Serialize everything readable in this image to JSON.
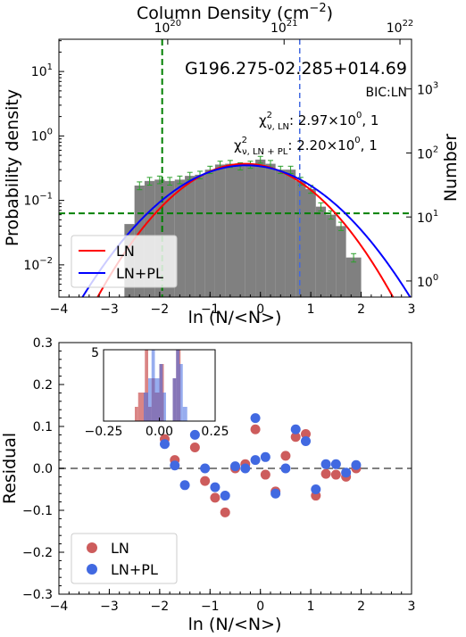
{
  "chart_data": [
    {
      "type": "bar",
      "title": "G196.275-02.285+014.69",
      "annotation_bic": "BIC:LN",
      "chi_ln": {
        "sym": "χ",
        "sup": "2",
        "sub": "ν, LN",
        "val": ": 2.97×10",
        "exp": "0",
        "tail": ", 1"
      },
      "chi_lnpl": {
        "sym": "χ",
        "sup": "2",
        "sub": "ν, LN + PL",
        "val": ": 2.20×10",
        "exp": "0",
        "tail": ", 1"
      },
      "xlabel": "ln (N/<N>)",
      "ylabel": "Probability density",
      "ylabel_right": "Number",
      "toplabel_text": "Column Density (cm",
      "toplabel_exp": "−2",
      "toplabel_close": ")",
      "xlim": [
        -4,
        3
      ],
      "ylim_log10": [
        -2.5,
        1.5
      ],
      "xticks": [
        -4,
        -3,
        -2,
        -1,
        0,
        1,
        2,
        3
      ],
      "xtick_labels": [
        "−4",
        "−3",
        "−2",
        "−1",
        "0",
        "1",
        "2",
        "3"
      ],
      "yticks_log10": [
        -2,
        -1,
        0,
        1
      ],
      "yticks_right_log10": [
        0,
        1,
        2,
        3
      ],
      "top_ticks": [
        {
          "base": "10",
          "exp": "20",
          "x": -1.84
        },
        {
          "base": "10",
          "exp": "21",
          "x": 0.47
        },
        {
          "base": "10",
          "exp": "22",
          "x": 2.77
        }
      ],
      "histogram": {
        "bin_edges": [
          -2.7,
          -2.5,
          -2.3,
          -2.1,
          -1.9,
          -1.7,
          -1.5,
          -1.3,
          -1.1,
          -0.9,
          -0.7,
          -0.5,
          -0.3,
          -0.1,
          0.1,
          0.3,
          0.5,
          0.7,
          0.9,
          1.1,
          1.3,
          1.5,
          1.7,
          2.0
        ],
        "density": [
          0.043,
          0.17,
          0.2,
          0.21,
          0.2,
          0.21,
          0.24,
          0.25,
          0.3,
          0.36,
          0.37,
          0.34,
          0.36,
          0.43,
          0.37,
          0.3,
          0.3,
          0.2,
          0.15,
          0.08,
          0.06,
          0.04,
          0.013
        ],
        "errors_visible_from_index": 1,
        "color": "#808080",
        "errorbar_color": "#2ca02c"
      },
      "ln_fit": {
        "mu": -0.3,
        "sigma": 0.95,
        "peak": 0.37,
        "color": "#ff0000",
        "name": "LN"
      },
      "lnpl_fit": {
        "mu": -0.28,
        "sigma": 1.06,
        "peak": 0.35,
        "color": "#0000ff",
        "name": "LN+PL"
      },
      "vline_green_x": -1.95,
      "vline_blue_x": 0.78,
      "hline_green_log10": -1.2,
      "legend": [
        "LN",
        "LN+PL"
      ],
      "legend_position": "lower-left"
    },
    {
      "type": "scatter",
      "xlabel": "ln (N/<N>)",
      "ylabel": "Residual",
      "xlim": [
        -4,
        3
      ],
      "ylim": [
        -0.3,
        0.3
      ],
      "xticks": [
        -4,
        -3,
        -2,
        -1,
        0,
        1,
        2,
        3
      ],
      "xtick_labels": [
        "−4",
        "−3",
        "−2",
        "−1",
        "0",
        "1",
        "2",
        "3"
      ],
      "yticks": [
        -0.3,
        -0.2,
        -0.1,
        0.0,
        0.1,
        0.2,
        0.3
      ],
      "ytick_labels": [
        "−0.3",
        "−0.2",
        "−0.1",
        "0.0",
        "0.1",
        "0.2",
        "0.3"
      ],
      "zero_line": 0.0,
      "legend_position": "lower-left",
      "series": [
        {
          "name": "LN",
          "color": "#cd5c5c",
          "x": [
            -1.9,
            -1.7,
            -1.3,
            -1.1,
            -0.9,
            -0.7,
            -0.5,
            -0.3,
            -0.1,
            0.1,
            0.3,
            0.5,
            0.7,
            0.9,
            1.1,
            1.3,
            1.5,
            1.7,
            1.9
          ],
          "y": [
            0.07,
            0.02,
            0.05,
            -0.03,
            -0.07,
            -0.105,
            0.0,
            0.01,
            0.093,
            -0.015,
            -0.055,
            0.03,
            0.075,
            0.082,
            -0.065,
            -0.013,
            -0.015,
            -0.02,
            0.0
          ]
        },
        {
          "name": "LN+PL",
          "color": "#4169e1",
          "x": [
            -1.9,
            -1.7,
            -1.5,
            -1.3,
            -1.1,
            -0.9,
            -0.7,
            -0.5,
            -0.3,
            -0.1,
            -0.1,
            0.1,
            0.3,
            0.5,
            0.7,
            0.9,
            1.1,
            1.3,
            1.5,
            1.7,
            1.9
          ],
          "y": [
            0.058,
            0.007,
            -0.04,
            0.08,
            0.0,
            -0.045,
            -0.065,
            0.005,
            0.0,
            0.12,
            0.02,
            0.027,
            -0.06,
            0.0,
            0.093,
            0.065,
            -0.05,
            0.01,
            0.01,
            -0.01,
            0.008
          ]
        }
      ],
      "inset": {
        "type": "histogram",
        "xlim": [
          -0.25,
          0.25
        ],
        "ylim": [
          0,
          5
        ],
        "xticks": [
          -0.25,
          0.0,
          0.25
        ],
        "xtick_labels": [
          "−0.25",
          "0.00",
          "0.25"
        ],
        "yticks": [
          0,
          5
        ],
        "ytick_labels": [
          "",
          "5"
        ],
        "ln_bins": [
          [
            -0.11,
            -0.095,
            1
          ],
          [
            -0.095,
            -0.08,
            2
          ],
          [
            -0.08,
            -0.065,
            2
          ],
          [
            -0.065,
            -0.05,
            5
          ],
          [
            -0.05,
            -0.035,
            1
          ],
          [
            -0.035,
            -0.02,
            3
          ],
          [
            -0.02,
            0.0,
            2
          ],
          [
            0.0,
            0.02,
            4
          ],
          [
            0.06,
            0.075,
            3
          ],
          [
            0.075,
            0.095,
            5
          ]
        ],
        "lnpl_bins": [
          [
            -0.07,
            -0.05,
            2
          ],
          [
            -0.05,
            -0.035,
            3
          ],
          [
            -0.035,
            -0.02,
            5
          ],
          [
            -0.02,
            0.0,
            3
          ],
          [
            0.0,
            0.015,
            4
          ],
          [
            0.015,
            0.03,
            2
          ],
          [
            0.06,
            0.075,
            3
          ],
          [
            0.075,
            0.09,
            5
          ],
          [
            0.09,
            0.105,
            4
          ],
          [
            0.105,
            0.125,
            1
          ]
        ]
      }
    }
  ]
}
